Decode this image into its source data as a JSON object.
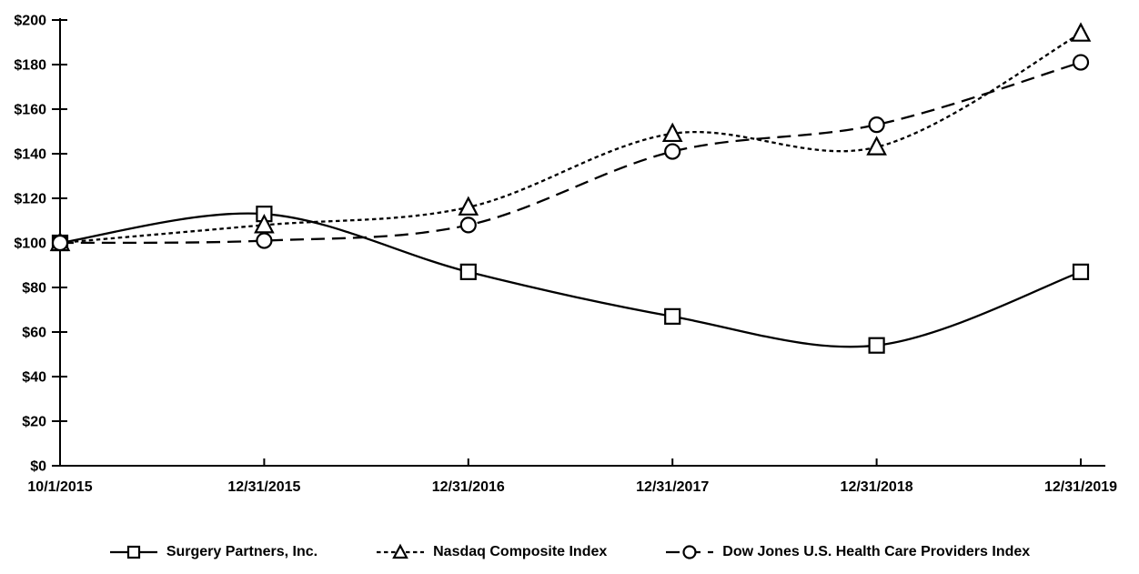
{
  "chart_data": {
    "type": "line",
    "title": "",
    "xlabel": "",
    "ylabel": "",
    "x_categories": [
      "10/1/2015",
      "12/31/2015",
      "12/31/2016",
      "12/31/2017",
      "12/31/2018",
      "12/31/2019"
    ],
    "y_tick_labels": [
      "$0",
      "$20",
      "$40",
      "$60",
      "$80",
      "$100",
      "$120",
      "$140",
      "$160",
      "$180",
      "$200"
    ],
    "ylim": [
      0,
      200
    ],
    "y_tick_step": 20,
    "grid": false,
    "legend_position": "bottom",
    "line_color": "#000000",
    "background_color": "#ffffff",
    "series": [
      {
        "name": "Surgery Partners, Inc.",
        "marker": "square",
        "line_style": "solid",
        "values": [
          100,
          113,
          87,
          67,
          54,
          87
        ]
      },
      {
        "name": "Nasdaq Composite Index",
        "marker": "triangle",
        "line_style": "short-dash",
        "values": [
          100,
          108,
          116,
          149,
          143,
          194
        ]
      },
      {
        "name": "Dow Jones U.S. Health Care Providers Index",
        "marker": "circle",
        "line_style": "long-dash",
        "values": [
          100,
          101,
          108,
          141,
          153,
          181
        ]
      }
    ]
  }
}
